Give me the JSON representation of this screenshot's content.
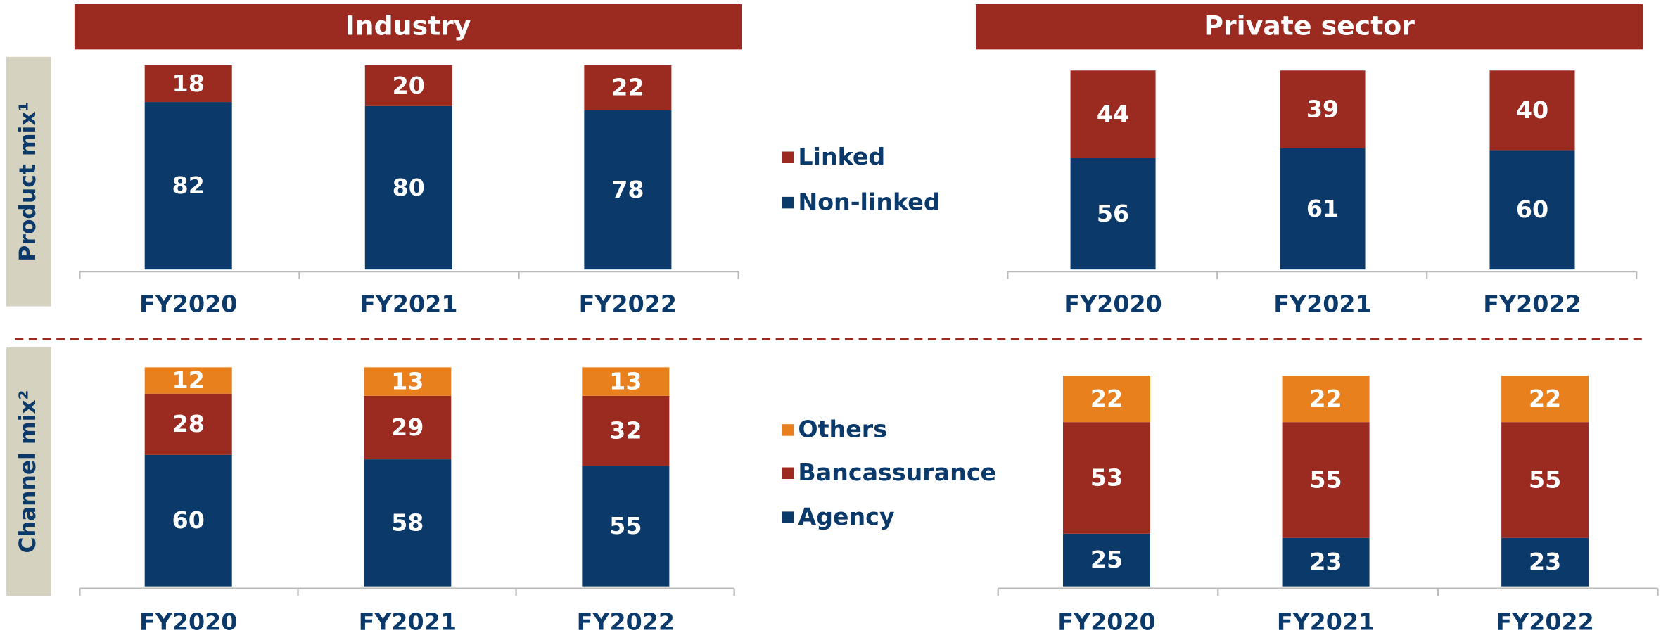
{
  "chart_data": [
    {
      "type": "bar",
      "stacked": true,
      "title": "Industry",
      "ylabel": "Product mix¹",
      "categories": [
        "FY2020",
        "FY2021",
        "FY2022"
      ],
      "series": [
        {
          "name": "Non-linked",
          "color": "#0b3a6a",
          "values": [
            82,
            80,
            78
          ]
        },
        {
          "name": "Linked",
          "color": "#9b2a21",
          "values": [
            18,
            20,
            22
          ]
        }
      ]
    },
    {
      "type": "bar",
      "stacked": true,
      "title": "Private sector",
      "categories": [
        "FY2020",
        "FY2021",
        "FY2022"
      ],
      "series": [
        {
          "color": "#0b3a6a",
          "values": [
            56,
            61,
            60
          ]
        },
        {
          "color": "#9b2a21",
          "values": [
            44,
            39,
            40
          ]
        }
      ]
    },
    {
      "type": "bar",
      "stacked": true,
      "ylabel": "Channel mix²",
      "categories": [
        "FY2020",
        "FY2021",
        "FY2022"
      ],
      "series": [
        {
          "name": "Agency",
          "color": "#0b3a6a",
          "values": [
            60,
            58,
            55
          ]
        },
        {
          "name": "Bancassurance",
          "color": "#9b2a21",
          "values": [
            28,
            29,
            32
          ]
        },
        {
          "name": "Others",
          "color": "#e8801e",
          "values": [
            12,
            13,
            13
          ]
        }
      ]
    },
    {
      "type": "bar",
      "stacked": true,
      "categories": [
        "FY2020",
        "FY2021",
        "FY2022"
      ],
      "series": [
        {
          "color": "#0b3a6a",
          "values": [
            25,
            23,
            23
          ]
        },
        {
          "color": "#9b2a21",
          "values": [
            53,
            55,
            55
          ]
        },
        {
          "color": "#e8801e",
          "values": [
            22,
            22,
            22
          ]
        }
      ]
    }
  ]
}
